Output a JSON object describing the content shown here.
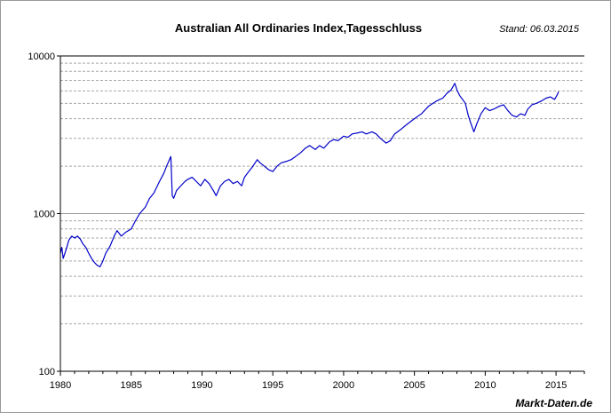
{
  "chart_data": {
    "type": "line",
    "title": "Australian All Ordinaries Index,Tagesschluss",
    "subtitle": "Stand: 06.03.2015",
    "source": "Markt-Daten.de",
    "xlabel": "",
    "ylabel": "",
    "xlim": [
      1980,
      2017
    ],
    "ylim": [
      100,
      10000
    ],
    "yscale": "log",
    "grid": true,
    "x_ticks": [
      "1980",
      "1985",
      "1990",
      "1995",
      "2000",
      "2005",
      "2010",
      "2015"
    ],
    "y_ticks": [
      "100",
      "1000",
      "10000"
    ],
    "colors": {
      "line": "#0000c8",
      "grid": "#a8a8a8",
      "axis": "#000000"
    },
    "series": [
      {
        "x": [
          1980.0,
          1980.1,
          1980.2,
          1980.4,
          1980.6,
          1980.8,
          1981.0,
          1981.2,
          1981.4,
          1981.6,
          1981.8,
          1982.0,
          1982.2,
          1982.4,
          1982.6,
          1982.8,
          1983.0,
          1983.2,
          1983.5,
          1983.8,
          1984.0,
          1984.3,
          1984.6,
          1985.0,
          1985.3,
          1985.6,
          1986.0,
          1986.3,
          1986.6,
          1987.0,
          1987.3,
          1987.5,
          1987.7,
          1987.8,
          1987.83,
          1987.9,
          1988.0,
          1988.2,
          1988.5,
          1988.8,
          1989.0,
          1989.3,
          1989.6,
          1989.9,
          1990.2,
          1990.5,
          1990.8,
          1991.0,
          1991.3,
          1991.6,
          1991.9,
          1992.2,
          1992.5,
          1992.8,
          1993.0,
          1993.3,
          1993.6,
          1993.9,
          1994.1,
          1994.4,
          1994.7,
          1995.0,
          1995.3,
          1995.6,
          1996.0,
          1996.3,
          1996.6,
          1997.0,
          1997.3,
          1997.6,
          1998.0,
          1998.3,
          1998.6,
          1999.0,
          1999.3,
          1999.6,
          2000.0,
          2000.3,
          2000.6,
          2001.0,
          2001.3,
          2001.6,
          2002.0,
          2002.3,
          2002.6,
          2003.0,
          2003.3,
          2003.6,
          2004.0,
          2004.5,
          2005.0,
          2005.5,
          2006.0,
          2006.3,
          2006.6,
          2007.0,
          2007.3,
          2007.6,
          2007.85,
          2008.0,
          2008.2,
          2008.4,
          2008.6,
          2008.8,
          2009.0,
          2009.2,
          2009.4,
          2009.7,
          2010.0,
          2010.3,
          2010.6,
          2011.0,
          2011.3,
          2011.6,
          2011.9,
          2012.2,
          2012.5,
          2012.8,
          2013.0,
          2013.3,
          2013.6,
          2014.0,
          2014.3,
          2014.6,
          2014.9,
          2015.1,
          2015.18
        ],
        "values": [
          560,
          610,
          520,
          590,
          680,
          720,
          700,
          720,
          690,
          640,
          610,
          560,
          520,
          490,
          470,
          460,
          500,
          560,
          620,
          720,
          780,
          720,
          760,
          800,
          900,
          1000,
          1100,
          1250,
          1350,
          1600,
          1800,
          2000,
          2200,
          2300,
          1950,
          1300,
          1250,
          1400,
          1500,
          1600,
          1650,
          1700,
          1600,
          1500,
          1650,
          1550,
          1400,
          1300,
          1500,
          1600,
          1650,
          1550,
          1600,
          1500,
          1700,
          1850,
          2000,
          2200,
          2100,
          2000,
          1900,
          1850,
          2000,
          2100,
          2150,
          2200,
          2300,
          2450,
          2600,
          2700,
          2550,
          2700,
          2600,
          2850,
          2950,
          2900,
          3100,
          3050,
          3200,
          3250,
          3300,
          3200,
          3300,
          3200,
          3000,
          2800,
          2900,
          3200,
          3400,
          3700,
          4000,
          4300,
          4800,
          5000,
          5200,
          5400,
          5800,
          6100,
          6700,
          6100,
          5600,
          5300,
          5000,
          4200,
          3700,
          3300,
          3700,
          4300,
          4700,
          4500,
          4600,
          4800,
          4900,
          4500,
          4200,
          4100,
          4300,
          4200,
          4600,
          4900,
          5000,
          5200,
          5400,
          5500,
          5300,
          5700,
          5930
        ]
      }
    ]
  }
}
